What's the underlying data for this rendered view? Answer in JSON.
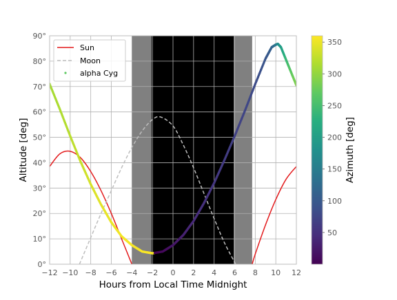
{
  "chart_data": {
    "type": "line",
    "xlabel": "Hours from Local Time Midnight",
    "ylabel": "Altitude [deg]",
    "xlim": [
      -12,
      12
    ],
    "ylim": [
      0,
      90
    ],
    "x_ticks": [
      -12,
      -10,
      -8,
      -6,
      -4,
      -2,
      0,
      2,
      4,
      6,
      8,
      10,
      12
    ],
    "x_tick_labels": [
      "−12",
      "−10",
      "−8",
      "−6",
      "−4",
      "−2",
      "0",
      "2",
      "4",
      "6",
      "8",
      "10",
      "12"
    ],
    "y_ticks": [
      0,
      10,
      20,
      30,
      40,
      50,
      60,
      70,
      80,
      90
    ],
    "y_tick_labels": [
      "0°",
      "10°",
      "20°",
      "30°",
      "40°",
      "50°",
      "60°",
      "70°",
      "80°",
      "90°"
    ],
    "grid": true,
    "legend_position": "top-left",
    "twilight_bands": [
      {
        "x0": -4.0,
        "x1": -2.1,
        "shade": "gray",
        "color": "#808080"
      },
      {
        "x0": -2.1,
        "x1": 5.9,
        "shade": "night",
        "color": "#000000"
      },
      {
        "x0": 5.9,
        "x1": 7.7,
        "shade": "gray",
        "color": "#808080"
      }
    ],
    "series": [
      {
        "name": "Sun",
        "style": "solid",
        "color": "#e31a1c",
        "x": [
          -12,
          -11,
          -10,
          -9,
          -8,
          -7,
          -6,
          -5,
          -4,
          7.7,
          8,
          9,
          10,
          11,
          12
        ],
        "y": [
          38.5,
          43.5,
          44.5,
          42.0,
          36.5,
          29.0,
          20.0,
          10.0,
          0.0,
          0.0,
          4.0,
          15.5,
          25.5,
          33.5,
          38.5
        ]
      },
      {
        "name": "Moon",
        "style": "dashed",
        "color": "#bdbdbd",
        "x": [
          -9.1,
          -8,
          -7,
          -6,
          -5,
          -4,
          -3,
          -2,
          -1.2,
          0,
          1,
          2,
          3,
          4,
          5,
          6.1
        ],
        "y": [
          0.0,
          10.5,
          20.0,
          29.0,
          38.0,
          46.0,
          52.5,
          57.0,
          58.0,
          54.5,
          47.0,
          38.0,
          28.0,
          18.0,
          8.5,
          0.0
        ]
      },
      {
        "name": "alpha Cyg",
        "style": "points",
        "colormap": "viridis",
        "color": "#5ec962",
        "x": [
          -12,
          -11,
          -10,
          -9,
          -8,
          -7,
          -6,
          -5,
          -4,
          -3,
          -2,
          -1,
          0,
          1,
          2,
          3,
          4,
          5,
          6,
          7,
          8,
          9,
          9.6,
          10,
          10.2,
          10.5,
          11,
          11.5,
          12
        ],
        "y": [
          71.0,
          61.0,
          50.5,
          40.5,
          31.5,
          23.5,
          16.5,
          11.0,
          7.5,
          5.0,
          4.3,
          5.0,
          7.5,
          11.5,
          17.0,
          24.0,
          32.0,
          41.0,
          50.5,
          60.5,
          71.0,
          81.0,
          85.5,
          86.5,
          86.8,
          85.5,
          80.5,
          75.5,
          70.5
        ],
        "azimuth": [
          310,
          315,
          322,
          330,
          338,
          345,
          350,
          354,
          356,
          357,
          358,
          8,
          20,
          32,
          42,
          50,
          56,
          62,
          68,
          74,
          82,
          95,
          110,
          140,
          170,
          200,
          240,
          270,
          290
        ]
      }
    ],
    "colorbar": {
      "label": "Azimuth [deg]",
      "min": 0,
      "max": 360,
      "ticks": [
        50,
        100,
        150,
        200,
        250,
        300,
        350
      ],
      "tick_labels": [
        "50",
        "100",
        "150",
        "200",
        "250",
        "300",
        "350"
      ]
    }
  }
}
